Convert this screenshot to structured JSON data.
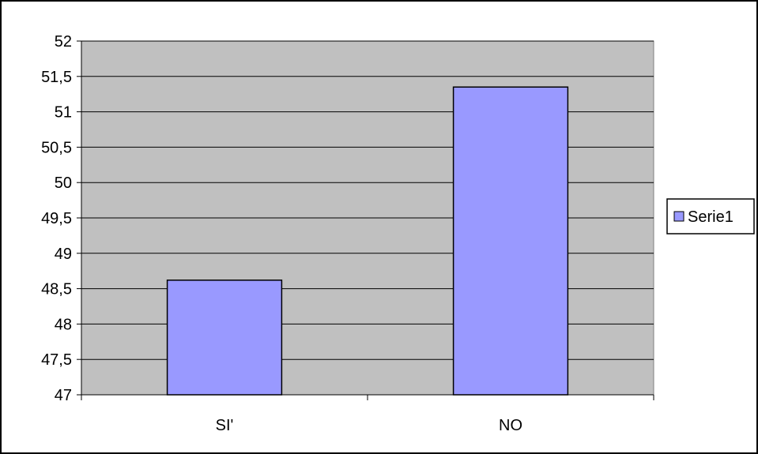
{
  "chart_data": {
    "type": "bar",
    "categories": [
      "SI'",
      "NO"
    ],
    "series": [
      {
        "name": "Serie1",
        "values": [
          48.62,
          51.35
        ],
        "color": "#9999ff"
      }
    ],
    "ylim": [
      47,
      52
    ],
    "y_ticks": [
      "47",
      "47,5",
      "48",
      "48,5",
      "49",
      "49,5",
      "50",
      "50,5",
      "51",
      "51,5",
      "52"
    ],
    "title": "",
    "xlabel": "",
    "ylabel": "",
    "grid": true,
    "legend_position": "right",
    "plot_background": "#c0c0c0"
  }
}
